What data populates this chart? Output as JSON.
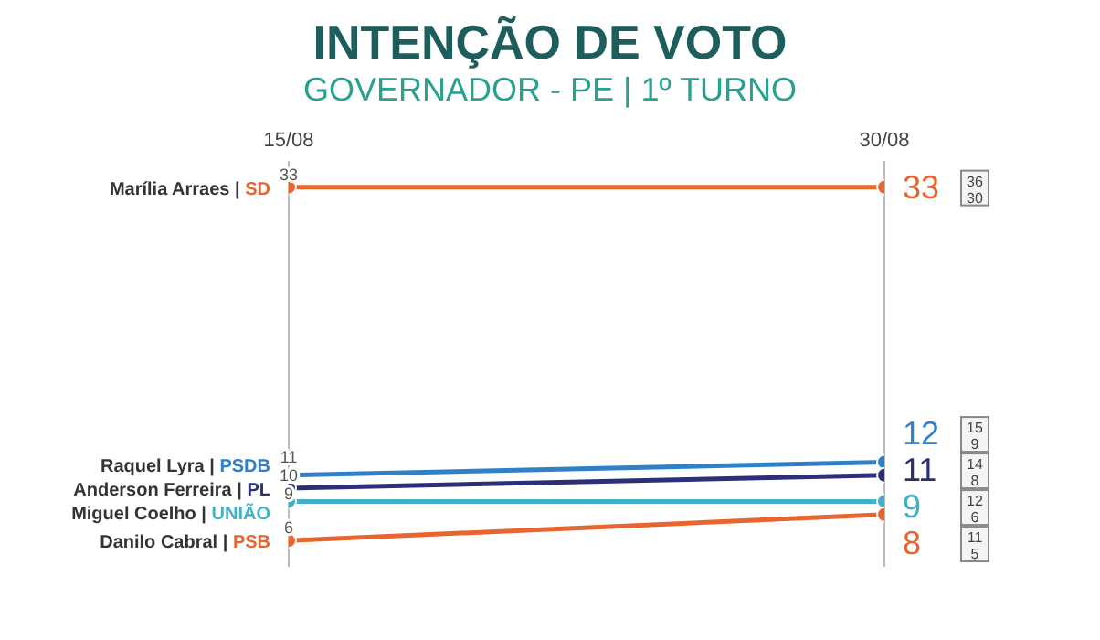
{
  "chart_data": {
    "type": "line",
    "title": "INTENÇÃO DE VOTO",
    "subtitle": "GOVERNADOR - PE | 1º TURNO",
    "categories": [
      "15/08",
      "30/08"
    ],
    "tick_labels": "x",
    "grid": "x",
    "marker": "circle",
    "line_style": "solid",
    "data_labels": true,
    "annotations": [
      "36",
      "30",
      "15",
      "9",
      "14",
      "8",
      "12",
      "6",
      "11",
      "5"
    ],
    "series": [
      {
        "name": "Marília Arraes | SD",
        "color": "#e8652f",
        "values": [
          33,
          33
        ]
      },
      {
        "name": "Raquel Lyra | PSDB",
        "color": "#2f80c8",
        "values": [
          11,
          12
        ]
      },
      {
        "name": "Anderson Ferreira | PL",
        "color": "#2b2f78",
        "values": [
          10,
          11
        ]
      },
      {
        "name": "Miguel Coelho | UNIÃO",
        "color": "#3fb2c9",
        "values": [
          9,
          9
        ]
      },
      {
        "name": "Danilo Cabral | PSB",
        "color": "#e8652f",
        "values": [
          6,
          8
        ]
      }
    ]
  }
}
